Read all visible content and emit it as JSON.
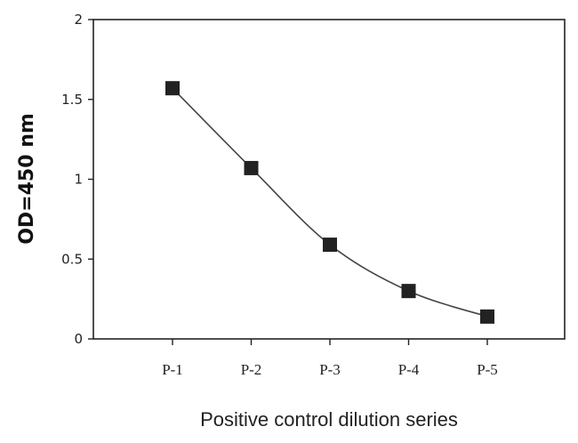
{
  "chart_data": {
    "type": "line",
    "title": "",
    "xlabel": "Positive control dilution series",
    "ylabel": "OD=450 nm",
    "categories": [
      "P-1",
      "P-2",
      "P-3",
      "P-4",
      "P-5"
    ],
    "series": [
      {
        "values": [
          1.57,
          1.07,
          0.59,
          0.3,
          0.14
        ]
      }
    ],
    "ylim": [
      0,
      2
    ],
    "yticks": [
      "0",
      "0.5",
      "1",
      "1.5",
      "2"
    ],
    "grid": false,
    "legend": "none",
    "marker": "square",
    "colors": {
      "line": "#444444",
      "marker": "#222222",
      "axis": "#222222"
    }
  }
}
